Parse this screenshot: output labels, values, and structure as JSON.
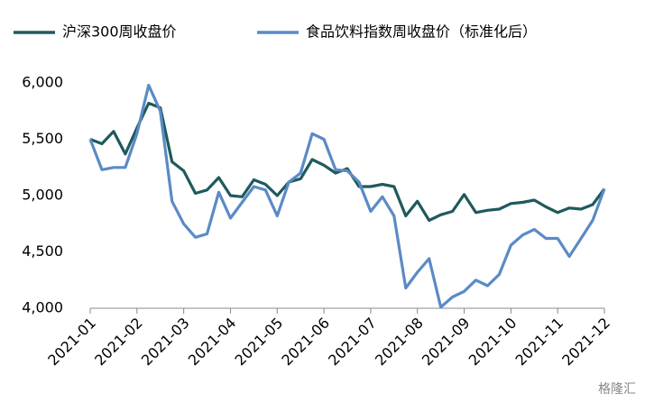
{
  "chart_data": {
    "type": "line",
    "categories": [
      "2021-01",
      null,
      null,
      null,
      "2021-02",
      null,
      null,
      null,
      "2021-03",
      null,
      null,
      null,
      "2021-04",
      null,
      null,
      null,
      "2021-05",
      null,
      null,
      null,
      "2021-06",
      null,
      null,
      null,
      "2021-07",
      null,
      null,
      null,
      "2021-08",
      null,
      null,
      null,
      "2021-09",
      null,
      null,
      null,
      "2021-10",
      null,
      null,
      null,
      "2021-11",
      null,
      null,
      null,
      "2021-12"
    ],
    "series": [
      {
        "name": "沪深300周收盘价",
        "color": "#1f5a5c",
        "values": [
          5500,
          5460,
          5570,
          5370,
          5600,
          5820,
          5780,
          5300,
          5220,
          5020,
          5050,
          5160,
          5000,
          4990,
          5140,
          5100,
          5000,
          5120,
          5150,
          5320,
          5270,
          5200,
          5240,
          5080,
          5080,
          5100,
          5080,
          4820,
          4950,
          4780,
          4830,
          4860,
          5010,
          4850,
          4870,
          4880,
          4930,
          4940,
          4960,
          4900,
          4850,
          4890,
          4880,
          4920,
          5060
        ]
      },
      {
        "name": "食品饮料指数周收盘价（标准化后）",
        "color": "#5b8ac6",
        "values": [
          5500,
          5230,
          5250,
          5250,
          5550,
          5980,
          5750,
          4950,
          4750,
          4630,
          4660,
          5030,
          4800,
          4940,
          5080,
          5050,
          4820,
          5120,
          5200,
          5550,
          5500,
          5230,
          5220,
          5120,
          4860,
          4990,
          4820,
          4180,
          4320,
          4440,
          4010,
          4100,
          4150,
          4250,
          4200,
          4300,
          4560,
          4650,
          4700,
          4620,
          4620,
          4460,
          4620,
          4780,
          5060
        ]
      }
    ],
    "ylim": [
      4000,
      6000
    ],
    "yticks": [
      {
        "value": 4000,
        "label": "4,000"
      },
      {
        "value": 4500,
        "label": "4,500"
      },
      {
        "value": 5000,
        "label": "5,000"
      },
      {
        "value": 5500,
        "label": "5,500"
      },
      {
        "value": 6000,
        "label": "6,000"
      }
    ],
    "watermark": "格隆汇"
  }
}
